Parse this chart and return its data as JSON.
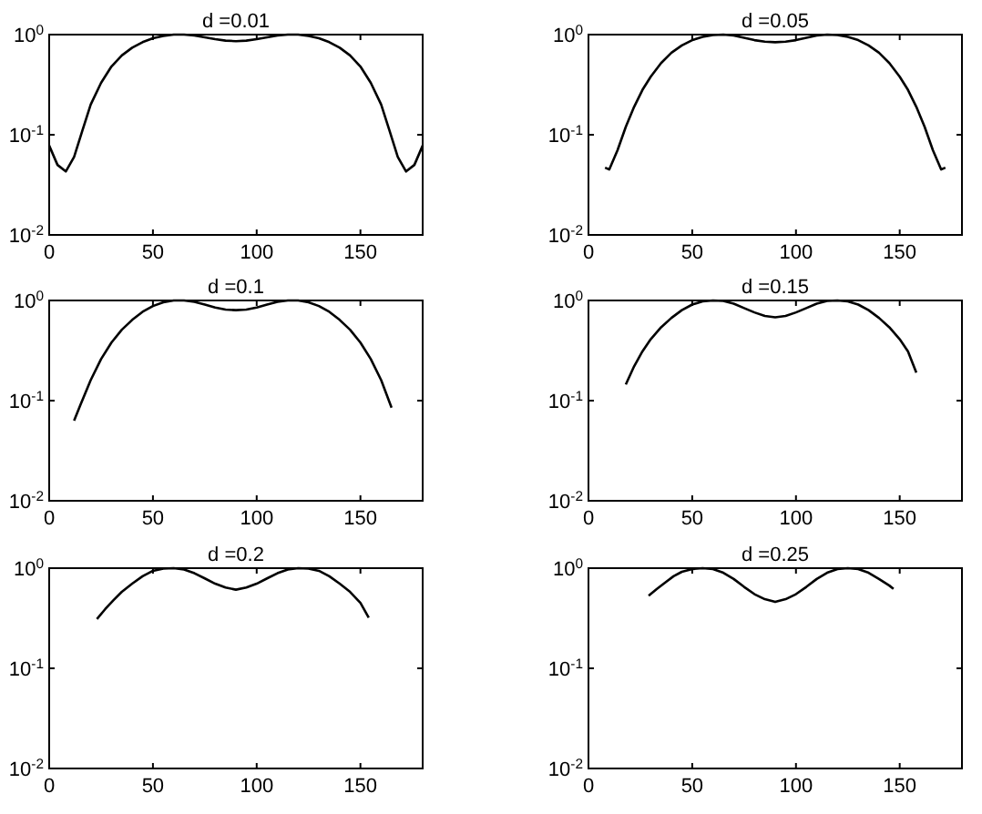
{
  "chart_data": [
    {
      "type": "line",
      "title": "d =0.01",
      "log": "y",
      "xlim": [
        0,
        180
      ],
      "xticks": [
        0,
        50,
        100,
        150
      ],
      "ylim": [
        0.01,
        1
      ],
      "yticks": [
        {
          "value": 0.01,
          "label": "10$^{-2}$"
        },
        {
          "value": 0.1,
          "label": "10$^{-1}$"
        },
        {
          "value": 1,
          "label": "10$^{0}$"
        }
      ],
      "x": [
        0,
        4,
        8,
        12,
        16,
        20,
        25,
        30,
        35,
        40,
        45,
        50,
        55,
        60,
        65,
        70,
        75,
        80,
        85,
        90,
        95,
        100,
        105,
        110,
        115,
        120,
        125,
        130,
        135,
        140,
        145,
        150,
        155,
        160,
        164,
        168,
        172,
        176,
        180
      ],
      "series": [
        {
          "color": "#000000",
          "values": [
            0.078,
            0.05,
            0.043,
            0.06,
            0.11,
            0.2,
            0.33,
            0.48,
            0.62,
            0.74,
            0.84,
            0.92,
            0.97,
            1.0,
            1.0,
            0.98,
            0.94,
            0.9,
            0.87,
            0.86,
            0.87,
            0.9,
            0.94,
            0.98,
            1.0,
            1.0,
            0.97,
            0.92,
            0.84,
            0.74,
            0.62,
            0.48,
            0.33,
            0.2,
            0.11,
            0.06,
            0.043,
            0.05,
            0.078
          ]
        }
      ]
    },
    {
      "type": "line",
      "title": "d =0.05",
      "log": "y",
      "xlim": [
        0,
        180
      ],
      "xticks": [
        0,
        50,
        100,
        150
      ],
      "ylim": [
        0.01,
        1
      ],
      "yticks": [
        {
          "value": 0.01,
          "label": "10$^{-2}$"
        },
        {
          "value": 0.1,
          "label": "10$^{-1}$"
        },
        {
          "value": 1,
          "label": "10$^{0}$"
        }
      ],
      "x": [
        8,
        10,
        14,
        18,
        22,
        26,
        30,
        35,
        40,
        45,
        50,
        55,
        60,
        65,
        70,
        75,
        80,
        85,
        90,
        95,
        100,
        105,
        110,
        115,
        120,
        125,
        130,
        135,
        140,
        145,
        150,
        154,
        158,
        162,
        166,
        170,
        172
      ],
      "series": [
        {
          "color": "#000000",
          "values": [
            0.047,
            0.045,
            0.07,
            0.12,
            0.19,
            0.28,
            0.38,
            0.52,
            0.66,
            0.78,
            0.88,
            0.95,
            0.99,
            1.0,
            0.98,
            0.93,
            0.88,
            0.85,
            0.84,
            0.85,
            0.88,
            0.93,
            0.98,
            1.0,
            0.99,
            0.95,
            0.88,
            0.78,
            0.66,
            0.52,
            0.38,
            0.28,
            0.19,
            0.12,
            0.07,
            0.045,
            0.047
          ]
        }
      ]
    },
    {
      "type": "line",
      "title": "d =0.1",
      "log": "y",
      "xlim": [
        0,
        180
      ],
      "xticks": [
        0,
        50,
        100,
        150
      ],
      "ylim": [
        0.01,
        1
      ],
      "yticks": [
        {
          "value": 0.01,
          "label": "10$^{-2}$"
        },
        {
          "value": 0.1,
          "label": "10$^{-1}$"
        },
        {
          "value": 1,
          "label": "10$^{0}$"
        }
      ],
      "x": [
        12,
        15,
        20,
        25,
        30,
        35,
        40,
        45,
        50,
        55,
        60,
        65,
        70,
        75,
        80,
        85,
        90,
        95,
        100,
        105,
        110,
        115,
        120,
        125,
        130,
        135,
        140,
        145,
        150,
        155,
        160,
        165
      ],
      "series": [
        {
          "color": "#000000",
          "values": [
            0.063,
            0.09,
            0.16,
            0.26,
            0.38,
            0.51,
            0.64,
            0.77,
            0.88,
            0.96,
            1.0,
            1.0,
            0.97,
            0.91,
            0.85,
            0.81,
            0.8,
            0.81,
            0.85,
            0.91,
            0.97,
            1.0,
            1.0,
            0.96,
            0.88,
            0.77,
            0.64,
            0.51,
            0.38,
            0.26,
            0.16,
            0.085
          ]
        }
      ]
    },
    {
      "type": "line",
      "title": "d =0.15",
      "log": "y",
      "xlim": [
        0,
        180
      ],
      "xticks": [
        0,
        50,
        100,
        150
      ],
      "ylim": [
        0.01,
        1
      ],
      "yticks": [
        {
          "value": 0.01,
          "label": "10$^{-2}$"
        },
        {
          "value": 0.1,
          "label": "10$^{-1}$"
        },
        {
          "value": 1,
          "label": "10$^{0}$"
        }
      ],
      "x": [
        18,
        22,
        26,
        30,
        35,
        40,
        45,
        50,
        55,
        60,
        65,
        70,
        75,
        80,
        85,
        90,
        95,
        100,
        105,
        110,
        115,
        120,
        125,
        130,
        135,
        140,
        145,
        150,
        154,
        158
      ],
      "series": [
        {
          "color": "#000000",
          "values": [
            0.145,
            0.22,
            0.31,
            0.41,
            0.54,
            0.67,
            0.8,
            0.91,
            0.98,
            1.0,
            0.99,
            0.93,
            0.84,
            0.76,
            0.7,
            0.68,
            0.7,
            0.76,
            0.84,
            0.93,
            0.99,
            1.0,
            0.98,
            0.91,
            0.8,
            0.67,
            0.54,
            0.41,
            0.31,
            0.19
          ]
        }
      ]
    },
    {
      "type": "line",
      "title": "d =0.2",
      "log": "y",
      "xlim": [
        0,
        180
      ],
      "xticks": [
        0,
        50,
        100,
        150
      ],
      "ylim": [
        0.01,
        1
      ],
      "yticks": [
        {
          "value": 0.01,
          "label": "10$^{-2}$"
        },
        {
          "value": 0.1,
          "label": "10$^{-1}$"
        },
        {
          "value": 1,
          "label": "10$^{0}$"
        }
      ],
      "x": [
        23,
        27,
        31,
        35,
        40,
        45,
        50,
        55,
        60,
        65,
        70,
        75,
        80,
        85,
        90,
        95,
        100,
        105,
        110,
        115,
        120,
        125,
        130,
        135,
        140,
        145,
        150,
        154
      ],
      "series": [
        {
          "color": "#000000",
          "values": [
            0.31,
            0.39,
            0.48,
            0.58,
            0.7,
            0.83,
            0.94,
            0.99,
            1.0,
            0.97,
            0.89,
            0.79,
            0.7,
            0.64,
            0.61,
            0.64,
            0.7,
            0.79,
            0.89,
            0.97,
            1.0,
            0.99,
            0.94,
            0.83,
            0.7,
            0.58,
            0.45,
            0.32
          ]
        }
      ]
    },
    {
      "type": "line",
      "title": "d =0.25",
      "log": "y",
      "xlim": [
        0,
        180
      ],
      "xticks": [
        0,
        50,
        100,
        150
      ],
      "ylim": [
        0.01,
        1
      ],
      "yticks": [
        {
          "value": 0.01,
          "label": "10$^{-2}$"
        },
        {
          "value": 0.1,
          "label": "10$^{-1}$"
        },
        {
          "value": 1,
          "label": "10$^{0}$"
        }
      ],
      "x": [
        29,
        33,
        37,
        41,
        45,
        50,
        55,
        60,
        65,
        70,
        75,
        80,
        85,
        90,
        95,
        100,
        105,
        110,
        115,
        120,
        125,
        130,
        135,
        140,
        145,
        147
      ],
      "series": [
        {
          "color": "#000000",
          "values": [
            0.53,
            0.62,
            0.72,
            0.83,
            0.92,
            0.98,
            1.0,
            0.98,
            0.9,
            0.78,
            0.65,
            0.55,
            0.49,
            0.46,
            0.49,
            0.55,
            0.65,
            0.78,
            0.9,
            0.98,
            1.0,
            0.98,
            0.9,
            0.78,
            0.67,
            0.62
          ]
        }
      ]
    }
  ]
}
